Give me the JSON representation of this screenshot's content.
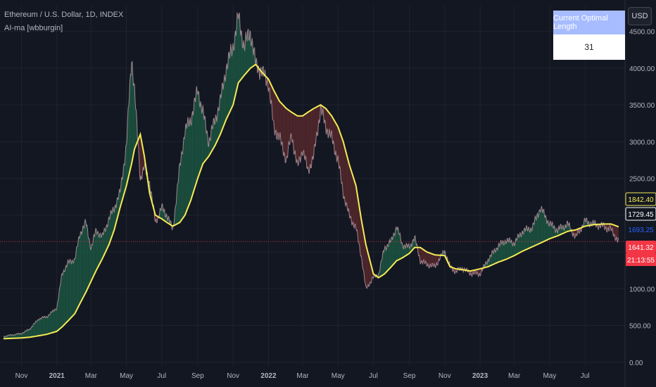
{
  "header": {
    "symbol_title": "Ethereum / U.S. Dollar, 1D, INDEX",
    "indicator_title": "AI-ma [wbburgin]",
    "currency_button": "USD"
  },
  "optimal_table": {
    "header": "Current Optimal Length",
    "value": "31"
  },
  "colors": {
    "background": "#131722",
    "grid": "#1f2330",
    "price_line": "#ffffff",
    "ma_line": "#f5eb55",
    "fill_above": "#1d5a44",
    "fill_below": "#5a2a2e",
    "current_price": "#f23645",
    "axis_text": "#b2b5be"
  },
  "chart_data": {
    "type": "line",
    "x": [
      "2020-10-01",
      "2020-10-15",
      "2020-11-01",
      "2020-11-15",
      "2020-12-01",
      "2020-12-15",
      "2021-01-01",
      "2021-01-10",
      "2021-01-20",
      "2021-02-01",
      "2021-02-10",
      "2021-02-20",
      "2021-03-01",
      "2021-03-10",
      "2021-03-20",
      "2021-04-01",
      "2021-04-10",
      "2021-04-20",
      "2021-05-01",
      "2021-05-10",
      "2021-05-15",
      "2021-05-25",
      "2021-06-01",
      "2021-06-10",
      "2021-06-20",
      "2021-07-01",
      "2021-07-10",
      "2021-07-20",
      "2021-08-01",
      "2021-08-10",
      "2021-08-20",
      "2021-09-01",
      "2021-09-10",
      "2021-09-20",
      "2021-10-01",
      "2021-10-10",
      "2021-10-20",
      "2021-11-01",
      "2021-11-10",
      "2021-11-20",
      "2021-12-01",
      "2021-12-10",
      "2021-12-20",
      "2022-01-01",
      "2022-01-10",
      "2022-01-20",
      "2022-02-01",
      "2022-02-10",
      "2022-02-20",
      "2022-03-01",
      "2022-03-10",
      "2022-03-20",
      "2022-04-01",
      "2022-04-10",
      "2022-04-20",
      "2022-05-01",
      "2022-05-10",
      "2022-05-20",
      "2022-06-01",
      "2022-06-10",
      "2022-06-18",
      "2022-07-01",
      "2022-07-10",
      "2022-07-20",
      "2022-08-01",
      "2022-08-10",
      "2022-08-20",
      "2022-09-01",
      "2022-09-10",
      "2022-09-20",
      "2022-10-01",
      "2022-10-15",
      "2022-11-01",
      "2022-11-10",
      "2022-11-20",
      "2022-12-01",
      "2022-12-15",
      "2023-01-01",
      "2023-01-15",
      "2023-02-01",
      "2023-02-15",
      "2023-03-01",
      "2023-03-15",
      "2023-04-01",
      "2023-04-15",
      "2023-05-01",
      "2023-05-15",
      "2023-06-01",
      "2023-06-15",
      "2023-07-01",
      "2023-07-15",
      "2023-08-01",
      "2023-08-15",
      "2023-08-28"
    ],
    "series": [
      {
        "values": [
          350,
          370,
          390,
          450,
          590,
          620,
          740,
          1200,
          1350,
          1400,
          1750,
          1900,
          1550,
          1800,
          1700,
          1950,
          2100,
          2300,
          2950,
          4150,
          3700,
          2500,
          2650,
          2450,
          1900,
          2100,
          2000,
          1800,
          2650,
          3150,
          3300,
          3700,
          3400,
          3000,
          3300,
          3550,
          4000,
          4300,
          4700,
          4300,
          4500,
          4050,
          3950,
          3800,
          3200,
          3050,
          2750,
          3100,
          2650,
          2900,
          2600,
          2800,
          3450,
          3200,
          3050,
          2750,
          2300,
          2000,
          1820,
          1450,
          1000,
          1150,
          1200,
          1550,
          1650,
          1850,
          1600,
          1560,
          1700,
          1380,
          1330,
          1300,
          1520,
          1300,
          1230,
          1280,
          1210,
          1200,
          1400,
          1580,
          1660,
          1620,
          1780,
          1830,
          2100,
          1880,
          1800,
          1880,
          1700,
          1920,
          1880,
          1850,
          1800,
          1641
        ]
      },
      {
        "values": [
          320,
          325,
          330,
          340,
          360,
          380,
          420,
          480,
          560,
          660,
          800,
          950,
          1100,
          1250,
          1400,
          1600,
          1800,
          2100,
          2400,
          2700,
          2900,
          3100,
          2800,
          2300,
          2000,
          1950,
          1900,
          1850,
          1900,
          2000,
          2200,
          2500,
          2700,
          2800,
          2950,
          3100,
          3300,
          3500,
          3800,
          3900,
          4000,
          4050,
          3950,
          3850,
          3700,
          3550,
          3450,
          3400,
          3350,
          3350,
          3400,
          3450,
          3500,
          3450,
          3350,
          3200,
          3000,
          2700,
          2400,
          1950,
          1600,
          1200,
          1150,
          1200,
          1300,
          1380,
          1420,
          1480,
          1560,
          1560,
          1500,
          1460,
          1450,
          1300,
          1270,
          1260,
          1240,
          1270,
          1300,
          1360,
          1400,
          1450,
          1510,
          1570,
          1620,
          1680,
          1720,
          1780,
          1800,
          1850,
          1870,
          1880,
          1880,
          1842
        ]
      }
    ],
    "ylim": [
      -50,
      4850
    ],
    "y_ticks": [
      "0.00",
      "500.00",
      "1000.00",
      "1500.00",
      "2000.00",
      "2500.00",
      "3000.00",
      "3500.00",
      "4000.00",
      "4500.00"
    ],
    "x_tick_labels": [
      {
        "date": "2020-11-01",
        "label": "Nov",
        "bold": false
      },
      {
        "date": "2021-01-01",
        "label": "2021",
        "bold": true
      },
      {
        "date": "2021-03-01",
        "label": "Mar",
        "bold": false
      },
      {
        "date": "2021-05-01",
        "label": "May",
        "bold": false
      },
      {
        "date": "2021-07-01",
        "label": "Jul",
        "bold": false
      },
      {
        "date": "2021-09-01",
        "label": "Sep",
        "bold": false
      },
      {
        "date": "2021-11-01",
        "label": "Nov",
        "bold": false
      },
      {
        "date": "2022-01-01",
        "label": "2022",
        "bold": true
      },
      {
        "date": "2022-03-01",
        "label": "Mar",
        "bold": false
      },
      {
        "date": "2022-05-01",
        "label": "May",
        "bold": false
      },
      {
        "date": "2022-07-01",
        "label": "Jul",
        "bold": false
      },
      {
        "date": "2022-09-01",
        "label": "Sep",
        "bold": false
      },
      {
        "date": "2022-11-01",
        "label": "Nov",
        "bold": false
      },
      {
        "date": "2023-01-01",
        "label": "2023",
        "bold": true
      },
      {
        "date": "2023-03-01",
        "label": "Mar",
        "bold": false
      },
      {
        "date": "2023-05-01",
        "label": "May",
        "bold": false
      },
      {
        "date": "2023-07-01",
        "label": "Jul",
        "bold": false
      }
    ],
    "price_labels": [
      {
        "value": 1842.4,
        "text": "1842.40",
        "bg": "#131722",
        "fg": "#f5eb55",
        "border": "#f5eb55"
      },
      {
        "value": 1729.45,
        "text": "1729.45",
        "bg": "#131722",
        "fg": "#ffffff",
        "border": "#ffffff"
      },
      {
        "value": 1693.25,
        "text": "1693.25",
        "bg": "#131722",
        "fg": "#2962ff",
        "border": "none"
      },
      {
        "value": 1641.32,
        "text": "1641.32",
        "bg": "#f23645",
        "fg": "#ffffff",
        "border": "none"
      }
    ],
    "countdown": "21:13:55",
    "current_price": 1641.32,
    "grid": true
  }
}
